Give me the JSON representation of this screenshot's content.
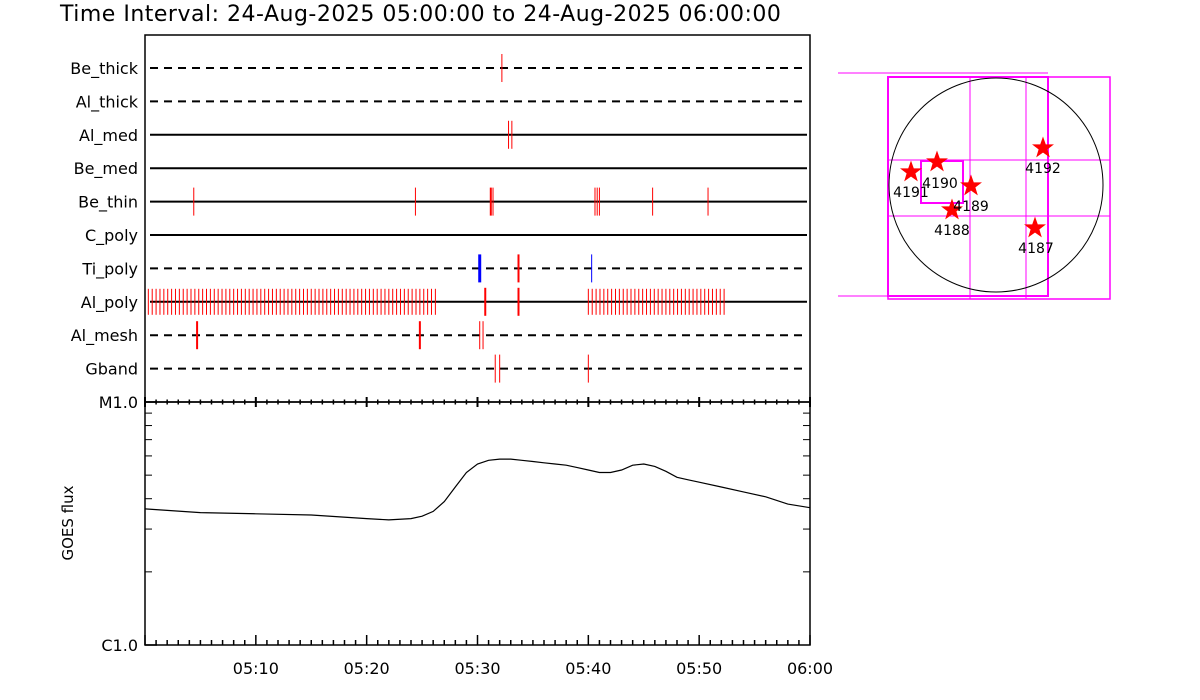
{
  "header": {
    "title_prefix": "Time Interval:",
    "start": "24-Aug-2025 05:00:00",
    "joiner": "to",
    "end": "24-Aug-2025 06:00:00"
  },
  "colors": {
    "red": "#ff0000",
    "blue": "#0000ff",
    "magenta": "#ff00ff",
    "black": "#000000"
  },
  "chart_data": [
    {
      "type": "scatter",
      "title": "",
      "xlabel": "",
      "ylabel": "",
      "x_range_minutes": [
        0,
        60
      ],
      "channels": [
        {
          "name": "Be_thick",
          "line": "dashed",
          "events": [
            {
              "t": 32.2,
              "color": "red"
            }
          ]
        },
        {
          "name": "Al_thick",
          "line": "dashed",
          "events": []
        },
        {
          "name": "Al_med",
          "line": "solid",
          "events": [
            {
              "t": 32.8,
              "color": "red"
            },
            {
              "t": 33.1,
              "color": "red"
            }
          ]
        },
        {
          "name": "Be_med",
          "line": "solid",
          "events": []
        },
        {
          "name": "Be_thin",
          "line": "solid",
          "events": [
            {
              "t": 4.4,
              "color": "red"
            },
            {
              "t": 24.4,
              "color": "red"
            },
            {
              "t": 31.2,
              "color": "red",
              "w": 2
            },
            {
              "t": 31.4,
              "color": "red"
            },
            {
              "t": 40.6,
              "color": "red"
            },
            {
              "t": 40.8,
              "color": "red"
            },
            {
              "t": 41.0,
              "color": "red"
            },
            {
              "t": 45.8,
              "color": "red"
            },
            {
              "t": 50.8,
              "color": "red"
            }
          ]
        },
        {
          "name": "C_poly",
          "line": "solid",
          "events": []
        },
        {
          "name": "Ti_poly",
          "line": "dashed",
          "events": [
            {
              "t": 30.2,
              "color": "blue",
              "w": 3
            },
            {
              "t": 33.7,
              "color": "red",
              "w": 2
            },
            {
              "t": 40.3,
              "color": "blue",
              "w": 1
            }
          ]
        },
        {
          "name": "Al_poly",
          "line": "solid",
          "dense_ranges": [
            [
              0.3,
              26.5,
              0.35
            ],
            [
              40.0,
              52.5,
              0.35
            ]
          ],
          "events": [
            {
              "t": 30.7,
              "color": "red",
              "w": 2
            },
            {
              "t": 33.7,
              "color": "red",
              "w": 2
            }
          ]
        },
        {
          "name": "Al_mesh",
          "line": "dashed",
          "events": [
            {
              "t": 4.7,
              "color": "red",
              "w": 2
            },
            {
              "t": 24.8,
              "color": "red",
              "w": 2
            },
            {
              "t": 30.2,
              "color": "red"
            },
            {
              "t": 30.5,
              "color": "red"
            }
          ]
        },
        {
          "name": "Gband",
          "line": "dashed",
          "events": [
            {
              "t": 31.6,
              "color": "red"
            },
            {
              "t": 32.0,
              "color": "red"
            },
            {
              "t": 40.0,
              "color": "red"
            }
          ]
        }
      ]
    },
    {
      "type": "line",
      "title": "",
      "xlabel": "",
      "ylabel": "GOES flux",
      "ytick_labels": [
        "M1.0",
        "C1.0"
      ],
      "ylim_log10_flux": [
        -6,
        -5
      ],
      "xtick_labels": [
        "05:10",
        "05:20",
        "05:30",
        "05:40",
        "05:50",
        "06:00"
      ],
      "xtick_minutes": [
        10,
        20,
        30,
        40,
        50,
        60
      ],
      "x_minutes": [
        0,
        5,
        10,
        15,
        20,
        22,
        24,
        25,
        26,
        27,
        28,
        29,
        30,
        31,
        32,
        33,
        34,
        35,
        36,
        37,
        38,
        39,
        40,
        41,
        42,
        43,
        44,
        45,
        46,
        47,
        48,
        49,
        50,
        52,
        54,
        56,
        58,
        60
      ],
      "y_log10_flux": [
        -5.44,
        -5.455,
        -5.46,
        -5.465,
        -5.48,
        -5.485,
        -5.48,
        -5.47,
        -5.45,
        -5.41,
        -5.35,
        -5.29,
        -5.255,
        -5.24,
        -5.235,
        -5.235,
        -5.24,
        -5.245,
        -5.25,
        -5.255,
        -5.26,
        -5.27,
        -5.28,
        -5.29,
        -5.29,
        -5.28,
        -5.26,
        -5.255,
        -5.265,
        -5.285,
        -5.31,
        -5.32,
        -5.33,
        -5.35,
        -5.37,
        -5.39,
        -5.42,
        -5.435
      ]
    }
  ],
  "map": {
    "active_regions": [
      {
        "label": "4187",
        "color": "red"
      },
      {
        "label": "4188",
        "color": "red"
      },
      {
        "label": "4189",
        "color": "red"
      },
      {
        "label": "4190",
        "color": "red"
      },
      {
        "label": "4191",
        "color": "red"
      },
      {
        "label": "4192",
        "color": "red"
      }
    ]
  }
}
